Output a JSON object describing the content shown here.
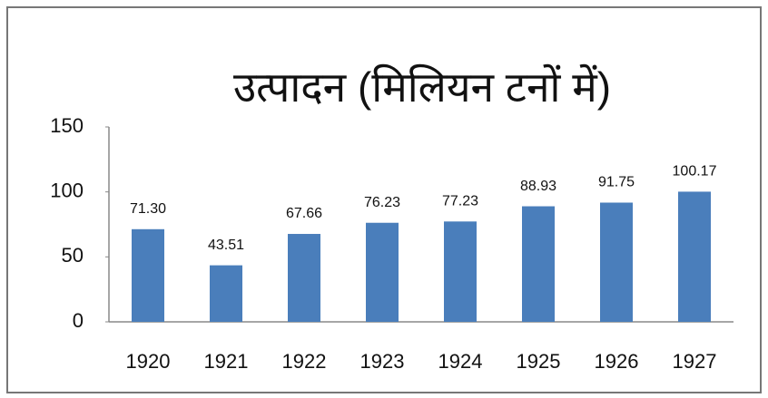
{
  "chart_data": {
    "type": "bar",
    "title": "उत्पादन (मिलियन टनों में)",
    "categories": [
      "1920",
      "1921",
      "1922",
      "1923",
      "1924",
      "1925",
      "1926",
      "1927"
    ],
    "values": [
      71.3,
      43.51,
      67.66,
      76.23,
      77.23,
      88.93,
      91.75,
      100.17
    ],
    "value_labels": [
      "71.30",
      "43.51",
      "67.66",
      "76.23",
      "77.23",
      "88.93",
      "91.75",
      "100.17"
    ],
    "color": "#4a7ebb",
    "ylim": [
      0,
      150
    ],
    "yticks": [
      0,
      50,
      100,
      150
    ],
    "grid": false
  }
}
